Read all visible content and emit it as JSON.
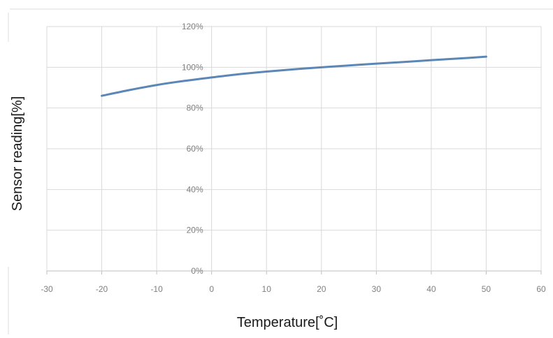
{
  "chart_data": {
    "type": "line",
    "xlabel": "Temperature[˚C]",
    "ylabel": "Sensor reading[%]",
    "xlim": [
      -30,
      60
    ],
    "ylim": [
      0,
      120
    ],
    "x_ticks": [
      -30,
      -20,
      -10,
      0,
      10,
      20,
      30,
      40,
      50,
      60
    ],
    "x_tick_labels": [
      "-30",
      "-20",
      "-10",
      "0",
      "10",
      "20",
      "30",
      "40",
      "50",
      "60"
    ],
    "y_ticks": [
      0,
      20,
      40,
      60,
      80,
      100,
      120
    ],
    "y_tick_labels": [
      "0%",
      "20%",
      "40%",
      "60%",
      "80%",
      "100%",
      "120%"
    ],
    "grid": true,
    "legend": "none",
    "series_color": "#5b86b5",
    "grid_color": "#d9d9d9",
    "series": [
      {
        "x": [
          -20,
          -15,
          -10,
          -5,
          0,
          5,
          10,
          15,
          20,
          25,
          30,
          35,
          40,
          45,
          50
        ],
        "y": [
          86,
          88.8,
          91.3,
          93.3,
          95,
          96.6,
          97.9,
          99,
          100,
          100.9,
          101.8,
          102.6,
          103.5,
          104.3,
          105.2
        ]
      }
    ]
  }
}
